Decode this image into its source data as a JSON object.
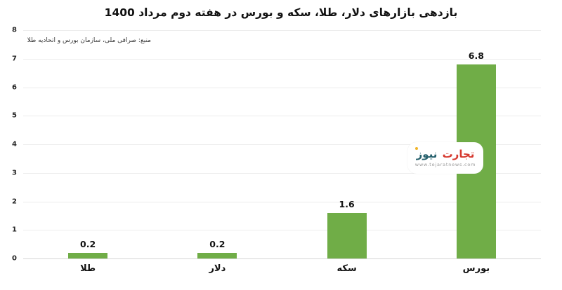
{
  "chart_data": {
    "type": "bar",
    "title": "بازدهی بازارهای دلار، طلا، سکه و بورس در هفته دوم مرداد 1400",
    "source_note": "منبع: صرافی ملی، سازمان بورس و اتحادیه طلا",
    "categories": [
      "طلا",
      "دلار",
      "سکه",
      "بورس"
    ],
    "values": [
      0.2,
      0.2,
      1.6,
      6.8
    ],
    "value_labels": [
      "0.2",
      "0.2",
      "1.6",
      "6.8"
    ],
    "xlabel": "",
    "ylabel": "",
    "ylim": [
      0,
      8
    ],
    "ytick_step": 1,
    "yticks": [
      0,
      1,
      2,
      3,
      4,
      5,
      6,
      7,
      8
    ],
    "grid": true,
    "legend": false,
    "bar_color": "#70ad47",
    "text_color": "#111111",
    "gridline_color": "#ececec"
  },
  "watermark": {
    "brand_first": "تجارت",
    "brand_second": "نیوز",
    "url": "www.tejaratnews.com",
    "brand_first_color": "#d63a30",
    "brand_second_color": "#27616d"
  }
}
